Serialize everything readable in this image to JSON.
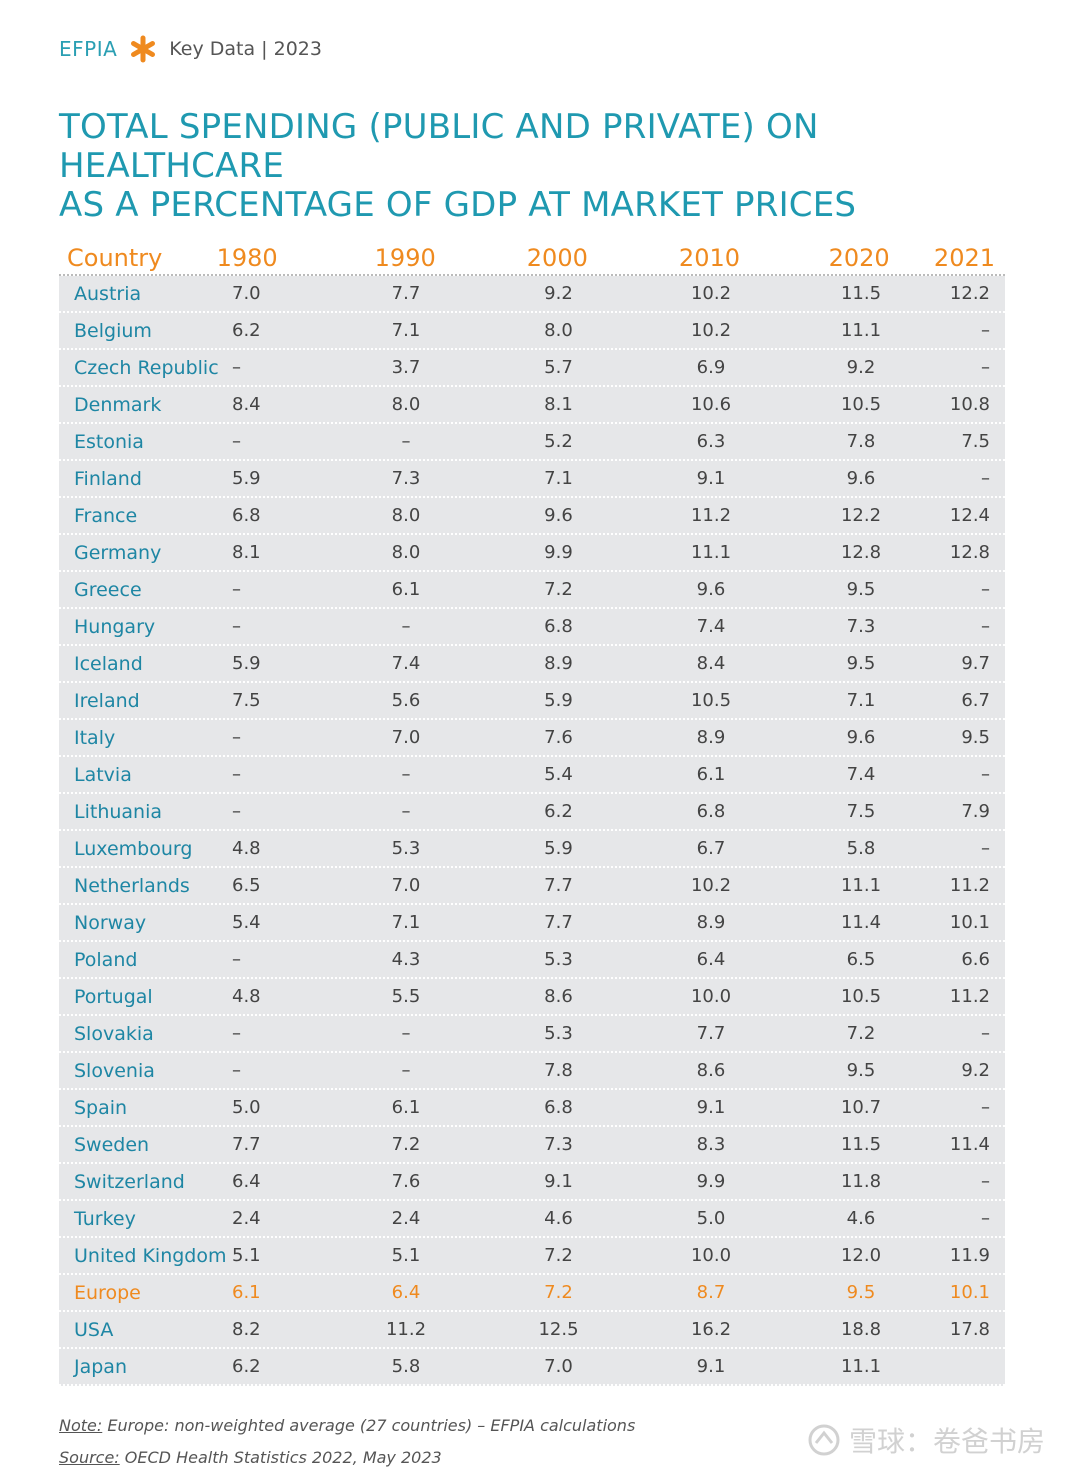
{
  "header": {
    "brand": "EFPIA",
    "subtitle": "Key Data | 2023"
  },
  "title_line1": "TOTAL SPENDING (PUBLIC AND PRIVATE) ON HEALTHCARE",
  "title_line2": "AS A PERCENTAGE OF GDP AT MARKET PRICES",
  "colors": {
    "teal": "#1f99b0",
    "orange": "#ef8a1f",
    "row_bg": "#e6e7e9"
  },
  "table": {
    "headers": [
      "Country",
      "1980",
      "1990",
      "2000",
      "2010",
      "2020",
      "2021"
    ],
    "rows": [
      [
        "Austria",
        "7.0",
        "7.7",
        "9.2",
        "10.2",
        "11.5",
        "12.2"
      ],
      [
        "Belgium",
        "6.2",
        "7.1",
        "8.0",
        "10.2",
        "11.1",
        "–"
      ],
      [
        "Czech Republic",
        "–",
        "3.7",
        "5.7",
        "6.9",
        "9.2",
        "–"
      ],
      [
        "Denmark",
        "8.4",
        "8.0",
        "8.1",
        "10.6",
        "10.5",
        "10.8"
      ],
      [
        "Estonia",
        "–",
        "–",
        "5.2",
        "6.3",
        "7.8",
        "7.5"
      ],
      [
        "Finland",
        "5.9",
        "7.3",
        "7.1",
        "9.1",
        "9.6",
        "–"
      ],
      [
        "France",
        "6.8",
        "8.0",
        "9.6",
        "11.2",
        "12.2",
        "12.4"
      ],
      [
        "Germany",
        "8.1",
        "8.0",
        "9.9",
        "11.1",
        "12.8",
        "12.8"
      ],
      [
        "Greece",
        "–",
        "6.1",
        "7.2",
        "9.6",
        "9.5",
        "–"
      ],
      [
        "Hungary",
        "–",
        "–",
        "6.8",
        "7.4",
        "7.3",
        "–"
      ],
      [
        "Iceland",
        "5.9",
        "7.4",
        "8.9",
        "8.4",
        "9.5",
        "9.7"
      ],
      [
        "Ireland",
        "7.5",
        "5.6",
        "5.9",
        "10.5",
        "7.1",
        "6.7"
      ],
      [
        "Italy",
        "–",
        "7.0",
        "7.6",
        "8.9",
        "9.6",
        "9.5"
      ],
      [
        "Latvia",
        "–",
        "–",
        "5.4",
        "6.1",
        "7.4",
        "–"
      ],
      [
        "Lithuania",
        "–",
        "–",
        "6.2",
        "6.8",
        "7.5",
        "7.9"
      ],
      [
        "Luxembourg",
        "4.8",
        "5.3",
        "5.9",
        "6.7",
        "5.8",
        "–"
      ],
      [
        "Netherlands",
        "6.5",
        "7.0",
        "7.7",
        "10.2",
        "11.1",
        "11.2"
      ],
      [
        "Norway",
        "5.4",
        "7.1",
        "7.7",
        "8.9",
        "11.4",
        "10.1"
      ],
      [
        "Poland",
        "–",
        "4.3",
        "5.3",
        "6.4",
        "6.5",
        "6.6"
      ],
      [
        "Portugal",
        "4.8",
        "5.5",
        "8.6",
        "10.0",
        "10.5",
        "11.2"
      ],
      [
        "Slovakia",
        "–",
        "–",
        "5.3",
        "7.7",
        "7.2",
        "–"
      ],
      [
        "Slovenia",
        "–",
        "–",
        "7.8",
        "8.6",
        "9.5",
        "9.2"
      ],
      [
        "Spain",
        "5.0",
        "6.1",
        "6.8",
        "9.1",
        "10.7",
        "–"
      ],
      [
        "Sweden",
        "7.7",
        "7.2",
        "7.3",
        "8.3",
        "11.5",
        "11.4"
      ],
      [
        "Switzerland",
        "6.4",
        "7.6",
        "9.1",
        "9.9",
        "11.8",
        "–"
      ],
      [
        "Turkey",
        "2.4",
        "2.4",
        "4.6",
        "5.0",
        "4.6",
        "–"
      ],
      [
        "United Kingdom",
        "5.1",
        "5.1",
        "7.2",
        "10.0",
        "12.0",
        "11.9"
      ],
      [
        "Europe",
        "6.1",
        "6.4",
        "7.2",
        "8.7",
        "9.5",
        "10.1"
      ],
      [
        "USA",
        "8.2",
        "11.2",
        "12.5",
        "16.2",
        "18.8",
        "17.8"
      ],
      [
        "Japan",
        "6.2",
        "5.8",
        "7.0",
        "9.1",
        "11.1",
        ""
      ]
    ],
    "highlight_row": "Europe"
  },
  "note": {
    "label": "Note:",
    "text": " Europe: non-weighted average (27 countries) – EFPIA calculations"
  },
  "source": {
    "label": "Source:",
    "text": " OECD Health Statistics 2022, May 2023"
  },
  "watermark": "雪球：卷爸书房"
}
